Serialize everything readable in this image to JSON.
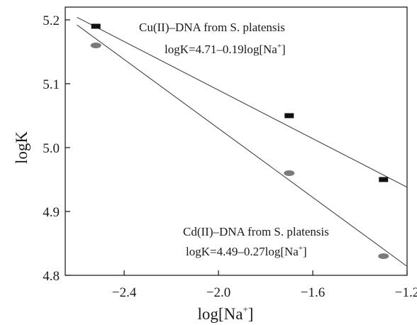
{
  "chart_data": {
    "type": "scatter",
    "xlabel_base": "log[Na",
    "xlabel_sup": "+",
    "xlabel_close": "]",
    "ylabel": "logK",
    "xlim": [
      -2.65,
      -1.2
    ],
    "ylim": [
      4.8,
      5.22
    ],
    "xticks": [
      -2.4,
      -2.0,
      -1.6,
      -1.2
    ],
    "xtick_labels": [
      "−2.4",
      "−2.0",
      "−1.6",
      "−1.2"
    ],
    "yticks": [
      4.8,
      4.9,
      5.0,
      5.1,
      5.2
    ],
    "ytick_labels": [
      "4.8",
      "4.9",
      "5.0",
      "5.1",
      "5.2"
    ],
    "grid": false,
    "legend": "none",
    "series": [
      {
        "marker": "square",
        "color": "#111111",
        "x": [
          -2.52,
          -1.7,
          -1.3
        ],
        "y": [
          5.19,
          5.05,
          4.95
        ],
        "fit": {
          "intercept": 4.71,
          "slope": -0.19
        },
        "label": "Cu(II)–DNA from S. platensis",
        "equation": {
          "prefix": "logK=4.71–0.19",
          "log_part": "log[Na",
          "sup": "+",
          "close": "]"
        }
      },
      {
        "marker": "circle",
        "color": "#7a7a7a",
        "x": [
          -2.52,
          -1.7,
          -1.3
        ],
        "y": [
          5.16,
          4.96,
          4.83
        ],
        "fit": {
          "intercept": 4.49,
          "slope": -0.27
        },
        "label": "Cd(II)–DNA from S. platensis",
        "equation": {
          "prefix": "logK=4.49–0.27",
          "log_part": "log[Na",
          "sup": "+",
          "close": "]"
        }
      }
    ]
  }
}
